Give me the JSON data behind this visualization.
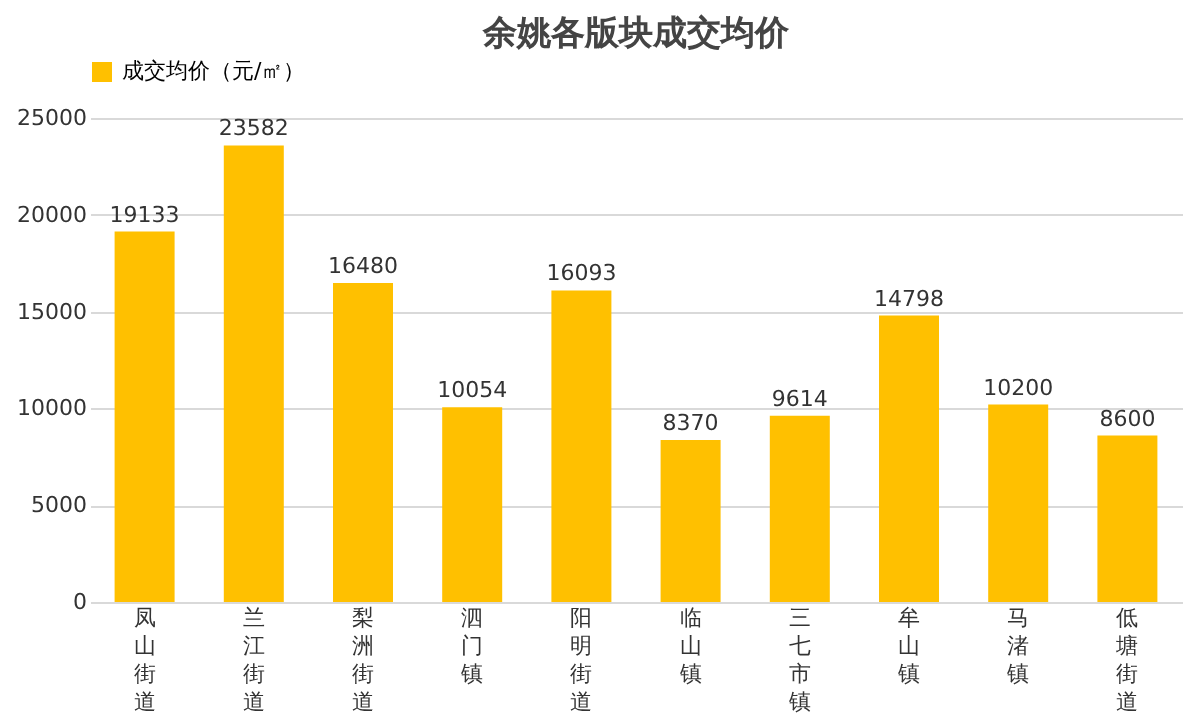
{
  "chart_data": {
    "type": "bar",
    "title": "余姚各版块成交均价",
    "categories": [
      "凤山街道",
      "兰江街道",
      "梨洲街道",
      "泗门镇",
      "阳明街道",
      "临山镇",
      "三七市镇",
      "牟山镇",
      "马渚镇",
      "低塘街道"
    ],
    "series": [
      {
        "name": "成交均价（元/㎡）",
        "color": "#ffc000",
        "values": [
          19133,
          23582,
          16480,
          10054,
          16093,
          8370,
          9614,
          14798,
          10200,
          8600
        ]
      }
    ],
    "ylim": [
      0,
      25000
    ],
    "yticks": [
      0,
      5000,
      10000,
      15000,
      20000,
      25000
    ],
    "grid": "y",
    "legend": "top",
    "data_labels": true
  }
}
